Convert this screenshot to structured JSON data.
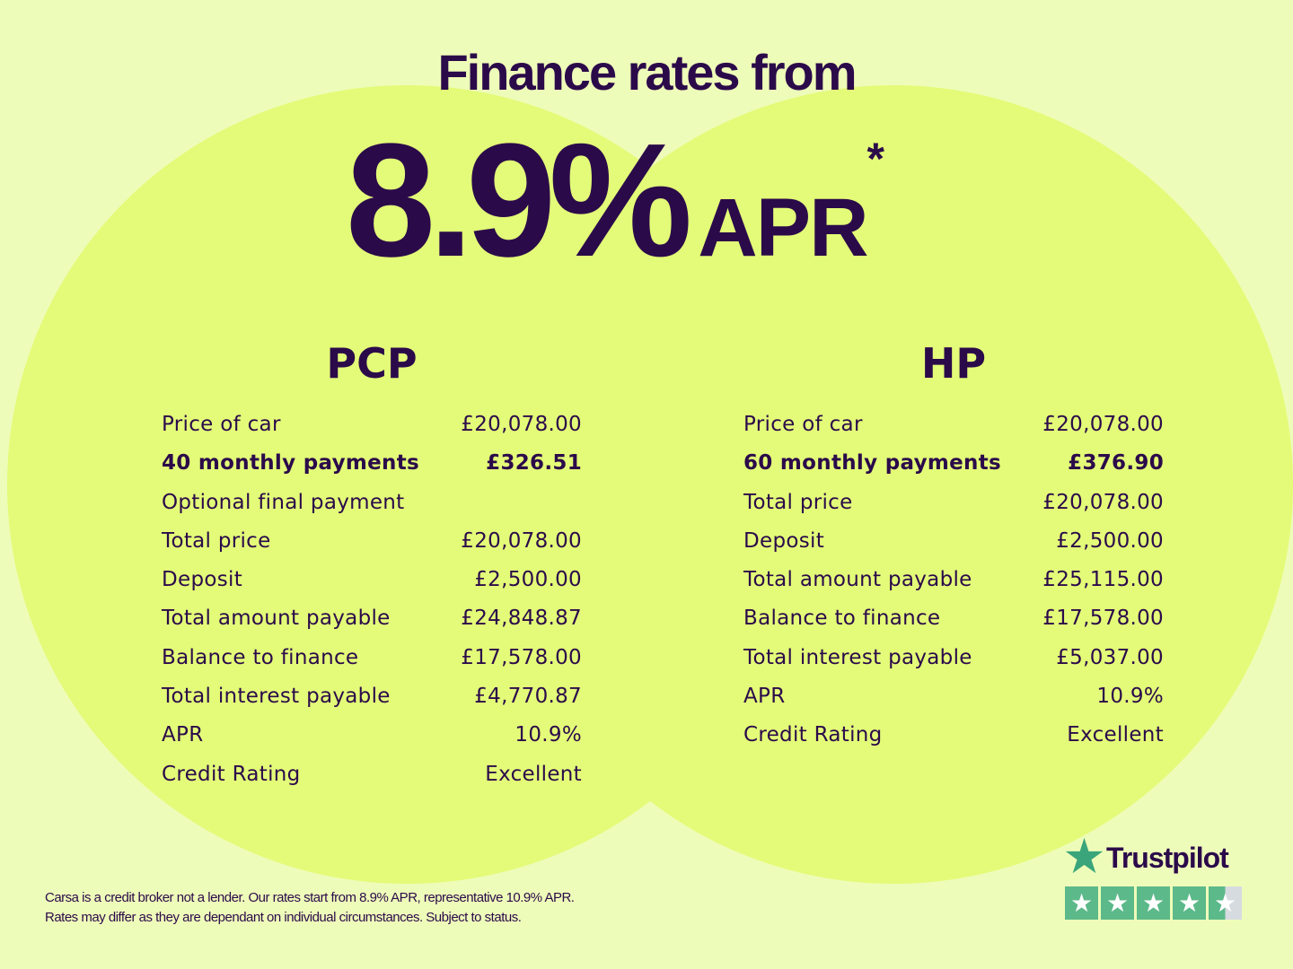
{
  "headline": "Finance rates from",
  "rate": "8.9%",
  "rate_suffix": "APR",
  "rate_mark": "*",
  "pcp": {
    "title": "PCP",
    "rows": [
      {
        "label": "Price of car",
        "value": "£20,078.00"
      },
      {
        "label": "40 monthly payments",
        "value": "£326.51",
        "bold": true
      },
      {
        "label": "Optional final payment",
        "value": ""
      },
      {
        "label": "Total price",
        "value": "£20,078.00"
      },
      {
        "label": "Deposit",
        "value": "£2,500.00"
      },
      {
        "label": "Total amount payable",
        "value": "£24,848.87"
      },
      {
        "label": "Balance to finance",
        "value": "£17,578.00"
      },
      {
        "label": "Total interest payable",
        "value": "£4,770.87"
      },
      {
        "label": "APR",
        "value": "10.9%"
      },
      {
        "label": "Credit Rating",
        "value": "Excellent"
      }
    ]
  },
  "hp": {
    "title": "HP",
    "rows": [
      {
        "label": "Price of car",
        "value": "£20,078.00"
      },
      {
        "label": "60 monthly payments",
        "value": "£376.90",
        "bold": true
      },
      {
        "label": "Total price",
        "value": "£20,078.00"
      },
      {
        "label": "Deposit",
        "value": "£2,500.00"
      },
      {
        "label": "Total amount payable",
        "value": "£25,115.00"
      },
      {
        "label": "Balance to finance",
        "value": "£17,578.00"
      },
      {
        "label": "Total interest payable",
        "value": "£5,037.00"
      },
      {
        "label": "APR",
        "value": "10.9%"
      },
      {
        "label": "Credit Rating",
        "value": "Excellent"
      }
    ]
  },
  "disclaimer": [
    "Carsa is a credit broker not a lender. Our rates start from 8.9% APR, representative 10.9% APR.",
    "Rates may differ as they are dependant on individual circumstances. Subject to status."
  ],
  "trustpilot": {
    "name": "Trustpilot",
    "rating_stars": 4.5,
    "icon": "star-icon"
  },
  "colors": {
    "background": "#eefcb9",
    "circle": "#e3fb78",
    "text": "#2b0a4a",
    "trustpilot": "#5cb98a"
  }
}
